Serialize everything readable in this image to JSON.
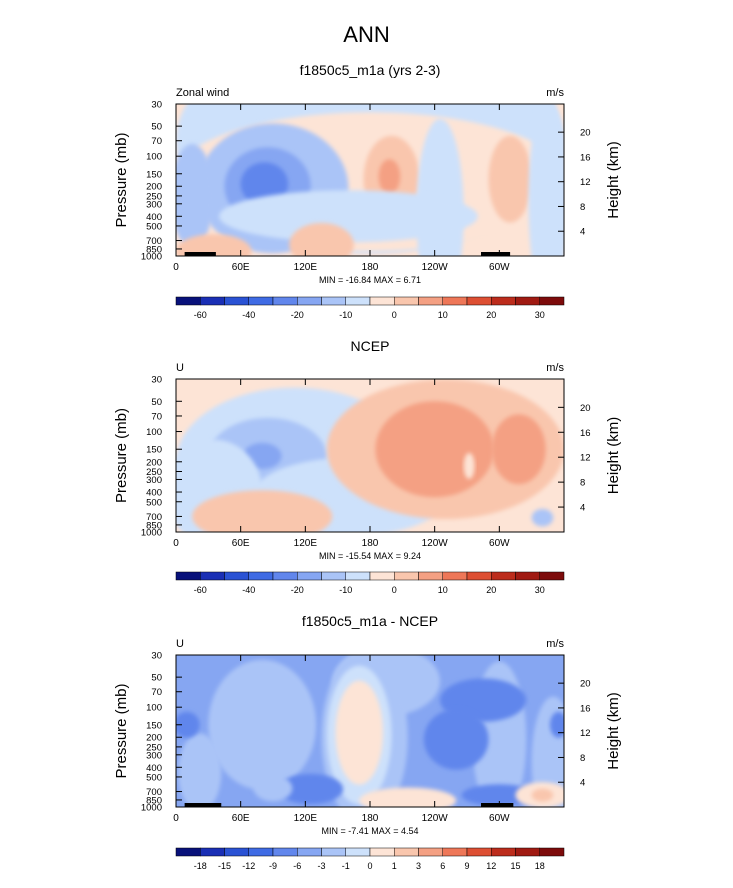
{
  "figure": {
    "title": "ANN"
  },
  "colors": {
    "plot_bg": "#dcecf8",
    "frame": "#000000",
    "land": "#000000"
  },
  "palette_main": [
    "#08117a",
    "#1a2fb5",
    "#2a52d4",
    "#3f6be4",
    "#6186ec",
    "#86a6f2",
    "#aac4f7",
    "#cde1fb",
    "#fde4d6",
    "#f9c6ad",
    "#f4a083",
    "#ee7758",
    "#dd4f33",
    "#bc2c1c",
    "#7d0b0b"
  ],
  "palette_diff": [
    "#08117a",
    "#1a2fb5",
    "#2a52d4",
    "#3f6be4",
    "#6186ec",
    "#86a6f2",
    "#aac4f7",
    "#cde1fb",
    "#fde4d6",
    "#f9c6ad",
    "#f4a083",
    "#ee7758",
    "#dd4f33",
    "#bc2c1c",
    "#7d0b0b"
  ],
  "chart_data": [
    {
      "type": "heatmap",
      "title": "f1850c5_m1a (yrs 2-3)",
      "left_label": "Zonal wind",
      "right_label": "m/s",
      "ylabel": "Pressure (mb)",
      "ylabel_right": "Height (km)",
      "x_ticks": [
        "0",
        "60E",
        "120E",
        "180",
        "120W",
        "60W"
      ],
      "y_ticks": [
        "30",
        "50",
        "70",
        "100",
        "150",
        "200",
        "250",
        "300",
        "400",
        "500",
        "700",
        "850",
        "1000"
      ],
      "height_ticks": [
        "20",
        "16",
        "12",
        "8",
        "4"
      ],
      "stats": "MIN = -16.84  MAX =  6.71",
      "min": -16.84,
      "max": 6.71,
      "colorbar_labels": [
        "-60",
        "-40",
        "-20",
        "-10",
        "0",
        "10",
        "20",
        "30"
      ],
      "base_level": "0",
      "regions": [
        {
          "lon": 180,
          "lev": 70,
          "rx": 180,
          "ry": 2.6,
          "level": "-1"
        },
        {
          "lon": 180,
          "lev": 180,
          "rx": 185,
          "ry": 1.6,
          "level": "0"
        },
        {
          "lon": 90,
          "lev": 210,
          "rx": 70,
          "ry": 1.5,
          "level": "-3"
        },
        {
          "lon": 85,
          "lev": 200,
          "rx": 40,
          "ry": 0.9,
          "level": "-7"
        },
        {
          "lon": 82,
          "lev": 190,
          "rx": 22,
          "ry": 0.5,
          "level": "-12"
        },
        {
          "lon": 15,
          "lev": 250,
          "rx": 20,
          "ry": 1.2,
          "level": "-3"
        },
        {
          "lon": 200,
          "lev": 170,
          "rx": 26,
          "ry": 1.0,
          "level": "1"
        },
        {
          "lon": 198,
          "lev": 160,
          "rx": 10,
          "ry": 0.4,
          "level": "3"
        },
        {
          "lon": 310,
          "lev": 170,
          "rx": 20,
          "ry": 1.0,
          "level": "1"
        },
        {
          "lon": 245,
          "lev": 380,
          "rx": 22,
          "ry": 2.2,
          "level": "-1"
        },
        {
          "lon": 345,
          "lev": 280,
          "rx": 18,
          "ry": 2.4,
          "level": "-1"
        },
        {
          "lon": 160,
          "lev": 400,
          "rx": 120,
          "ry": 0.6,
          "level": "-1"
        },
        {
          "lon": 135,
          "lev": 770,
          "rx": 30,
          "ry": 0.5,
          "level": "1"
        },
        {
          "lon": 35,
          "lev": 900,
          "rx": 35,
          "ry": 0.4,
          "level": "1"
        }
      ],
      "land": [
        {
          "lon0": 8,
          "lon1": 37
        },
        {
          "lon0": 283,
          "lon1": 310
        }
      ]
    },
    {
      "type": "heatmap",
      "title": "NCEP",
      "left_label": "U",
      "right_label": "m/s",
      "ylabel": "Pressure (mb)",
      "ylabel_right": "Height (km)",
      "x_ticks": [
        "0",
        "60E",
        "120E",
        "180",
        "120W",
        "60W"
      ],
      "y_ticks": [
        "30",
        "50",
        "70",
        "100",
        "150",
        "200",
        "250",
        "300",
        "400",
        "500",
        "700",
        "850",
        "1000"
      ],
      "height_ticks": [
        "20",
        "16",
        "12",
        "8",
        "4"
      ],
      "stats": "MIN = -15.54  MAX =  9.24",
      "min": -15.54,
      "max": 9.24,
      "colorbar_labels": [
        "-60",
        "-40",
        "-20",
        "-10",
        "0",
        "10",
        "20",
        "30"
      ],
      "base_level": "0",
      "regions": [
        {
          "lon": 110,
          "lev": 200,
          "rx": 110,
          "ry": 1.7,
          "level": "-1"
        },
        {
          "lon": 85,
          "lev": 180,
          "rx": 55,
          "ry": 0.9,
          "level": "-3"
        },
        {
          "lon": 80,
          "lev": 175,
          "rx": 18,
          "ry": 0.3,
          "level": "-7"
        },
        {
          "lon": 35,
          "lev": 400,
          "rx": 45,
          "ry": 1.2,
          "level": "-1"
        },
        {
          "lon": 160,
          "lev": 450,
          "rx": 90,
          "ry": 0.9,
          "level": "-1"
        },
        {
          "lon": 250,
          "lev": 150,
          "rx": 110,
          "ry": 1.6,
          "level": "1"
        },
        {
          "lon": 240,
          "lev": 150,
          "rx": 55,
          "ry": 1.1,
          "level": "3"
        },
        {
          "lon": 318,
          "lev": 150,
          "rx": 25,
          "ry": 0.8,
          "level": "3"
        },
        {
          "lon": 272,
          "lev": 220,
          "rx": 5,
          "ry": 0.3,
          "level": "0"
        },
        {
          "lon": 80,
          "lev": 700,
          "rx": 65,
          "ry": 0.6,
          "level": "1"
        },
        {
          "lon": 340,
          "lev": 720,
          "rx": 10,
          "ry": 0.2,
          "level": "-3"
        }
      ],
      "land": []
    },
    {
      "type": "heatmap",
      "title": "f1850c5_m1a - NCEP",
      "left_label": "U",
      "right_label": "m/s",
      "ylabel": "Pressure (mb)",
      "ylabel_right": "Height (km)",
      "x_ticks": [
        "0",
        "60E",
        "120E",
        "180",
        "120W",
        "60W"
      ],
      "y_ticks": [
        "30",
        "50",
        "70",
        "100",
        "150",
        "200",
        "250",
        "300",
        "400",
        "500",
        "700",
        "850",
        "1000"
      ],
      "height_ticks": [
        "20",
        "16",
        "12",
        "8",
        "4"
      ],
      "stats": "MIN = -7.41  MAX =  4.54",
      "min": -7.41,
      "max": 4.54,
      "colorbar_labels": [
        "-18",
        "-15",
        "-12",
        "-9",
        "-6",
        "-3",
        "-1",
        "0",
        "1",
        "3",
        "6",
        "9",
        "12",
        "15",
        "18"
      ],
      "base_level": "-3",
      "regions": [
        {
          "lon": 195,
          "lev": 55,
          "rx": 50,
          "ry": 0.8,
          "level": "-1"
        },
        {
          "lon": 80,
          "lev": 150,
          "rx": 50,
          "ry": 1.5,
          "level": "-1"
        },
        {
          "lon": 175,
          "lev": 200,
          "rx": 40,
          "ry": 2.0,
          "level": "-1"
        },
        {
          "lon": 170,
          "lev": 190,
          "rx": 30,
          "ry": 1.6,
          "level": "0"
        },
        {
          "lon": 170,
          "lev": 180,
          "rx": 22,
          "ry": 1.2,
          "level": "1"
        },
        {
          "lon": 300,
          "lev": 210,
          "rx": 25,
          "ry": 1.8,
          "level": "-1"
        },
        {
          "lon": 350,
          "lev": 350,
          "rx": 20,
          "ry": 1.5,
          "level": "-1"
        },
        {
          "lon": 22,
          "lev": 450,
          "rx": 20,
          "ry": 0.9,
          "level": "-1"
        },
        {
          "lon": 285,
          "lev": 85,
          "rx": 40,
          "ry": 0.5,
          "level": "-6"
        },
        {
          "lon": 260,
          "lev": 210,
          "rx": 30,
          "ry": 0.7,
          "level": "-6"
        },
        {
          "lon": 10,
          "lev": 150,
          "rx": 12,
          "ry": 0.3,
          "level": "-6"
        },
        {
          "lon": 355,
          "lev": 150,
          "rx": 8,
          "ry": 0.3,
          "level": "-6"
        },
        {
          "lon": 125,
          "lev": 660,
          "rx": 30,
          "ry": 0.35,
          "level": "-6"
        },
        {
          "lon": 300,
          "lev": 760,
          "rx": 35,
          "ry": 0.25,
          "level": "-6"
        },
        {
          "lon": 215,
          "lev": 860,
          "rx": 45,
          "ry": 0.3,
          "level": "1"
        },
        {
          "lon": 340,
          "lev": 760,
          "rx": 25,
          "ry": 0.3,
          "level": "1"
        },
        {
          "lon": 340,
          "lev": 760,
          "rx": 10,
          "ry": 0.15,
          "level": "3"
        },
        {
          "lon": 90,
          "lev": 650,
          "rx": 18,
          "ry": 0.3,
          "level": "-1"
        }
      ],
      "land": [
        {
          "lon0": 8,
          "lon1": 42
        },
        {
          "lon0": 283,
          "lon1": 313
        }
      ]
    }
  ]
}
